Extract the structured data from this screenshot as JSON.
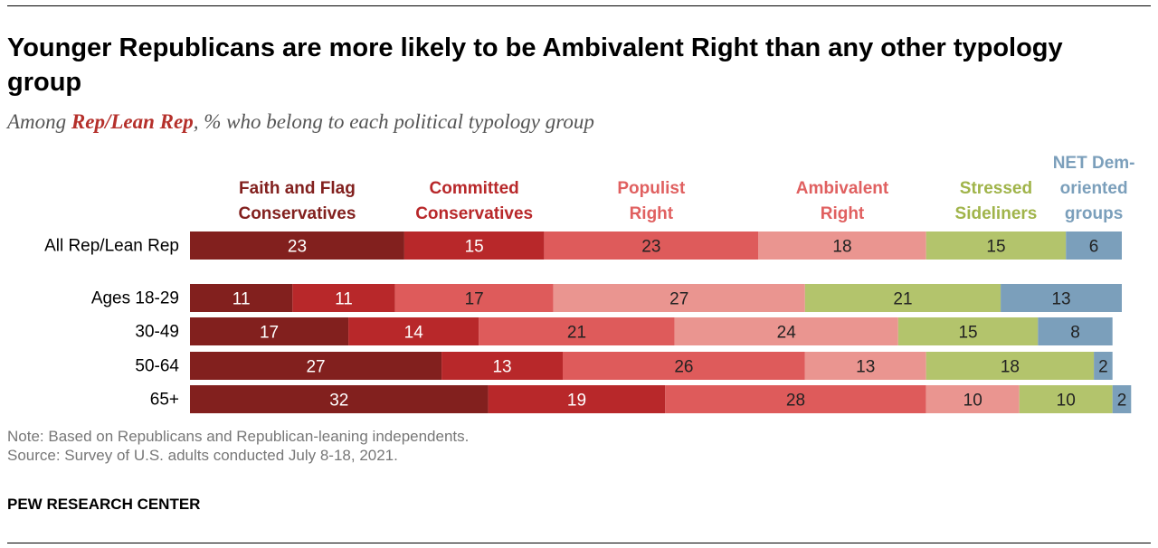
{
  "title": "Younger Republicans are more likely to be Ambivalent Right than any other typology group",
  "subtitle": {
    "before": "Among ",
    "highlight": "Rep/Lean Rep",
    "after": ", % who belong to each political typology group"
  },
  "note": "Note: Based on Republicans and Republican-leaning independents.",
  "source": "Source: Survey of U.S. adults conducted July 8-18, 2021.",
  "credit": "PEW RESEARCH CENTER",
  "colors": {
    "faith_flag": "#82201e",
    "committed": "#b8282a",
    "populist": "#de5b5b",
    "ambivalent": "#ea9590",
    "stressed": "#b3c46c",
    "net_dem": "#7b9fbb",
    "label_faith_flag": "#82201e",
    "label_committed": "#b8282a",
    "label_populist": "#e06060",
    "label_ambivalent": "#e06060",
    "label_stressed": "#a0b44a",
    "label_net_dem": "#7b9fbb"
  },
  "chart_data": {
    "type": "bar",
    "orientation": "horizontal",
    "stacked": true,
    "categories": [
      "All Rep/Lean Rep",
      "Ages 18-29",
      "30-49",
      "50-64",
      "65+"
    ],
    "series": [
      {
        "name": "Faith and Flag Conservatives",
        "label_lines": [
          "Faith and Flag",
          "Conservatives"
        ],
        "color_key": "faith_flag",
        "label_color_key": "label_faith_flag",
        "values": [
          23,
          11,
          17,
          27,
          32
        ]
      },
      {
        "name": "Committed Conservatives",
        "label_lines": [
          "Committed",
          "Conservatives"
        ],
        "color_key": "committed",
        "label_color_key": "label_committed",
        "values": [
          15,
          11,
          14,
          13,
          19
        ]
      },
      {
        "name": "Populist Right",
        "label_lines": [
          "Populist",
          "Right"
        ],
        "color_key": "populist",
        "label_color_key": "label_populist",
        "values": [
          23,
          17,
          21,
          26,
          28
        ]
      },
      {
        "name": "Ambivalent Right",
        "label_lines": [
          "Ambivalent",
          "Right"
        ],
        "color_key": "ambivalent",
        "label_color_key": "label_ambivalent",
        "values": [
          18,
          27,
          24,
          13,
          10
        ]
      },
      {
        "name": "Stressed Sideliners",
        "label_lines": [
          "Stressed",
          "Sideliners"
        ],
        "color_key": "stressed",
        "label_color_key": "label_stressed",
        "values": [
          15,
          21,
          15,
          18,
          10
        ]
      },
      {
        "name": "NET Dem-oriented groups",
        "label_lines": [
          "NET Dem-",
          "oriented",
          "groups"
        ],
        "color_key": "net_dem",
        "label_color_key": "label_net_dem",
        "values": [
          6,
          13,
          8,
          2,
          2
        ]
      }
    ]
  }
}
